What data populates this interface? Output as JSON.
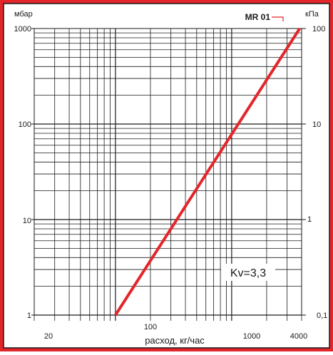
{
  "chart_data": {
    "type": "line",
    "x_scale": "log",
    "y_scale": "log",
    "xlim": [
      20,
      4000
    ],
    "ylim": [
      1,
      1000
    ],
    "y2lim": [
      0.1,
      100
    ],
    "x_ticks": [
      "20",
      "100",
      "1000",
      "4000"
    ],
    "y_ticks": [
      "1",
      "10",
      "100",
      "1000"
    ],
    "y2_ticks": [
      "0,1",
      "1",
      "10",
      "100"
    ],
    "xlabel": "расход, кг/час",
    "ylabel": "мбар",
    "y2label": "кПа",
    "grid": true,
    "series": [
      {
        "name": "MR 01",
        "x": [
          100,
          3850
        ],
        "y": [
          1,
          1000
        ],
        "color": "#e3262a"
      }
    ],
    "annotations": [
      {
        "text": "Kv=3,3"
      }
    ],
    "colors": {
      "frame_accent": "#e3262a",
      "curve": "#e3262a",
      "grid": "#1a1a1a"
    }
  }
}
